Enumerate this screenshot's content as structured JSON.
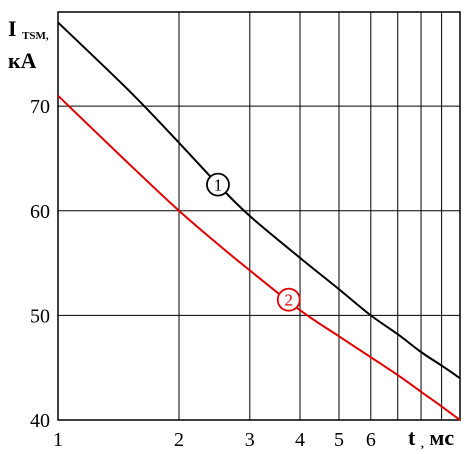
{
  "chart_data": {
    "type": "line",
    "x_scale": "log",
    "xlim": [
      1,
      10
    ],
    "ylim": [
      40,
      79
    ],
    "grid": true,
    "x_ticks": [
      1,
      2,
      3,
      4,
      5,
      6,
      7,
      8,
      9,
      10
    ],
    "x_tick_labels": [
      "1",
      "2",
      "3",
      "4",
      "5",
      "6",
      "",
      "",
      "",
      ""
    ],
    "y_ticks": [
      40,
      50,
      60,
      70
    ],
    "y_tick_labels": [
      "40",
      "50",
      "60",
      "70"
    ],
    "ylabel_main": "I",
    "ylabel_sub": "TSM,",
    "ylabel_unit": "кА",
    "xlabel": "t",
    "xlabel_sub": ",",
    "xlabel_unit": "мс",
    "series": [
      {
        "name": "1",
        "color": "#000000",
        "x": [
          1,
          1.5,
          2,
          2.5,
          3,
          4,
          5,
          6,
          7,
          8,
          9,
          10
        ],
        "y": [
          78,
          71.5,
          66.5,
          62.5,
          59.5,
          55.5,
          52.5,
          50,
          48.2,
          46.5,
          45.2,
          44
        ]
      },
      {
        "name": "2",
        "color": "#e00000",
        "x": [
          1,
          1.5,
          2,
          2.5,
          3,
          4,
          5,
          6,
          7,
          8,
          9,
          10
        ],
        "y": [
          71,
          64.5,
          60,
          56.8,
          54.3,
          50.5,
          48,
          46,
          44.3,
          42.7,
          41.3,
          40
        ]
      }
    ],
    "markers": [
      {
        "label": "1",
        "series": 0,
        "x": 2.5,
        "y": 62.5,
        "color": "#000000"
      },
      {
        "label": "2",
        "series": 1,
        "x": 3.75,
        "y": 51.5,
        "color": "#e00000"
      }
    ]
  }
}
